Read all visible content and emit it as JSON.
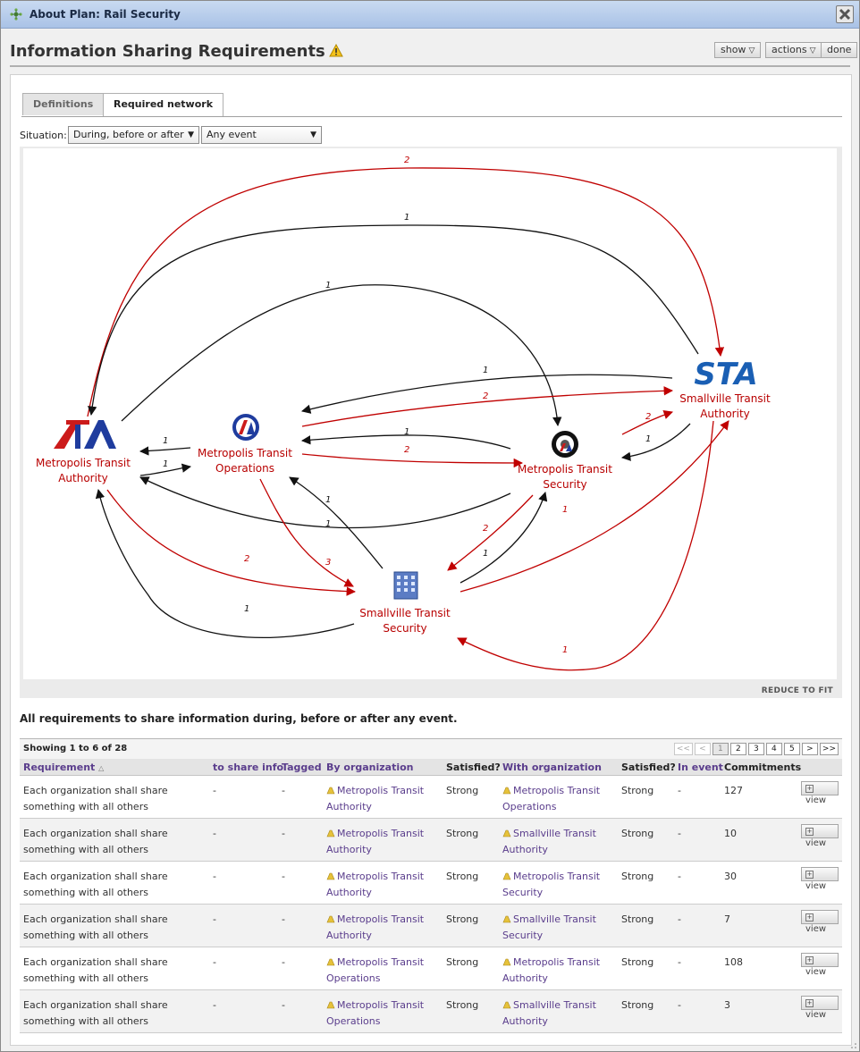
{
  "window": {
    "title": "About Plan: Rail Security"
  },
  "header": {
    "title": "Information Sharing Requirements",
    "show_label": "show",
    "actions_label": "actions",
    "done_label": "done"
  },
  "tabs": [
    {
      "label": "Definitions",
      "active": false
    },
    {
      "label": "Required network",
      "active": true
    }
  ],
  "situation": {
    "label": "Situation:",
    "timing": "During, before or after",
    "event": "Any event"
  },
  "graph": {
    "nodes": {
      "mta": {
        "line1": "Metropolis Transit",
        "line2": "Authority",
        "icon": "ata-logo"
      },
      "mto": {
        "line1": "Metropolis Transit",
        "line2": "Operations",
        "icon": "circular-logo"
      },
      "mts": {
        "line1": "Metropolis Transit",
        "line2": "Security",
        "icon": "police-badge"
      },
      "sta": {
        "line1": "Smallville Transit",
        "line2": "Authority",
        "icon": "sta-logo",
        "logo_text": "STA"
      },
      "sts": {
        "line1": "Smallville Transit",
        "line2": "Security",
        "icon": "building-icon"
      }
    },
    "edge_labels": {
      "mta_sta": "2",
      "sta_mta": "1",
      "mts_mta": "1",
      "mto_mta": "1",
      "mta_mto": "1",
      "sta_mto": "1",
      "mto_sta": "2",
      "mts_mto": "1",
      "mto_mts": "2",
      "mts_sta": "2",
      "sta_mts": "1",
      "sts_mta": "1",
      "mta_sts": "2",
      "mto_sts": "3",
      "sts_mto": "1",
      "mts_sts": "2",
      "sts_mts": "1",
      "sts_sta": "1",
      "sta_sts": "1",
      "mta_mts": "1"
    },
    "colors": {
      "sent": "#c00000",
      "received": "#111111"
    },
    "reduce_label": "REDUCE TO FIT"
  },
  "summary": "All requirements to share information during, before or after any event.",
  "table": {
    "showing": "Showing 1 to 6 of 28",
    "pager": {
      "first": "<<",
      "prev": "<",
      "pages": [
        "1",
        "2",
        "3",
        "4",
        "5"
      ],
      "next": ">",
      "last": ">>",
      "current": "1"
    },
    "columns": [
      "Requirement",
      "to share info",
      "Tagged",
      "By organization",
      "Satisfied?",
      "With organization",
      "Satisfied?",
      "In event",
      "Commitments"
    ],
    "view_label": "view",
    "rows": [
      {
        "req": "Each organization shall share something with all others",
        "info": "-",
        "tagged": "-",
        "by": "Metropolis Transit Authority",
        "sat1": "Strong",
        "with": "Metropolis Transit Operations",
        "sat2": "Strong",
        "event": "-",
        "commitments": "127"
      },
      {
        "req": "Each organization shall share something with all others",
        "info": "-",
        "tagged": "-",
        "by": "Metropolis Transit Authority",
        "sat1": "Strong",
        "with": "Smallville Transit Authority",
        "sat2": "Strong",
        "event": "-",
        "commitments": "10"
      },
      {
        "req": "Each organization shall share something with all others",
        "info": "-",
        "tagged": "-",
        "by": "Metropolis Transit Authority",
        "sat1": "Strong",
        "with": "Metropolis Transit Security",
        "sat2": "Strong",
        "event": "-",
        "commitments": "30"
      },
      {
        "req": "Each organization shall share something with all others",
        "info": "-",
        "tagged": "-",
        "by": "Metropolis Transit Authority",
        "sat1": "Strong",
        "with": "Smallville Transit Security",
        "sat2": "Strong",
        "event": "-",
        "commitments": "7"
      },
      {
        "req": "Each organization shall share something with all others",
        "info": "-",
        "tagged": "-",
        "by": "Metropolis Transit Operations",
        "sat1": "Strong",
        "with": "Metropolis Transit Authority",
        "sat2": "Strong",
        "event": "-",
        "commitments": "108"
      },
      {
        "req": "Each organization shall share something with all others",
        "info": "-",
        "tagged": "-",
        "by": "Metropolis Transit Operations",
        "sat1": "Strong",
        "with": "Smallville Transit Authority",
        "sat2": "Strong",
        "event": "-",
        "commitments": "3"
      }
    ]
  }
}
